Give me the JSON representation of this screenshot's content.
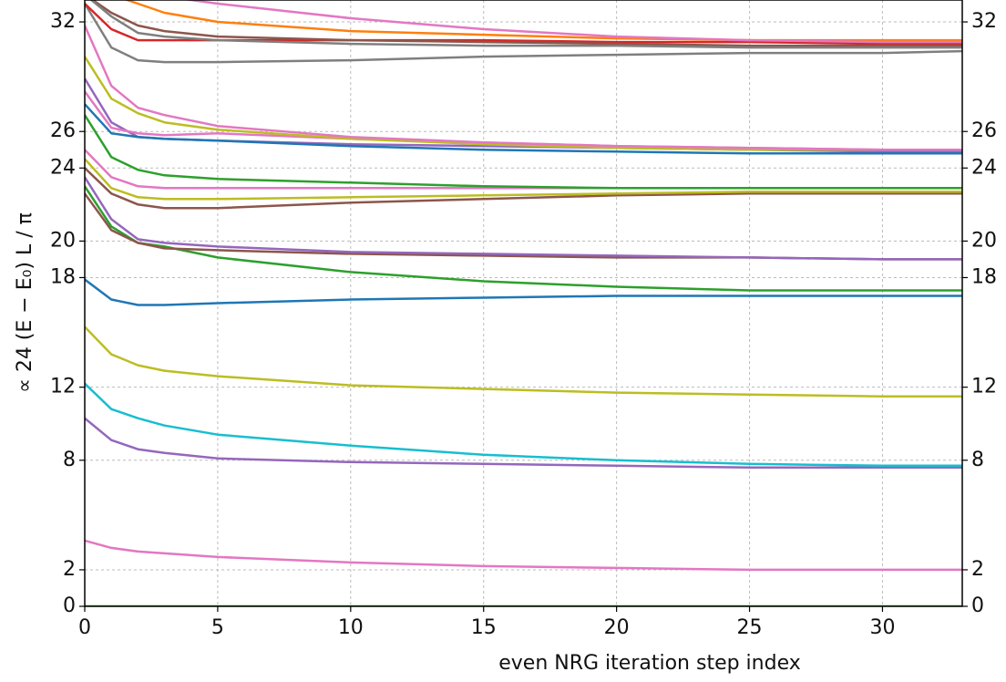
{
  "chart_data": {
    "type": "line",
    "xlabel": "even NRG iteration step index",
    "ylabel": "∝ 24 (E − E₀) L / π",
    "x": [
      0,
      1,
      2,
      3,
      5,
      10,
      15,
      20,
      25,
      30,
      33
    ],
    "xlim": [
      0,
      33
    ],
    "ylim": [
      0,
      33.2
    ],
    "xticks": [
      0,
      5,
      10,
      15,
      20,
      25,
      30
    ],
    "yticks": [
      0,
      2,
      8,
      12,
      18,
      20,
      24,
      26,
      32
    ],
    "y2lim": [
      0,
      33.2
    ],
    "y2ticks": [
      0,
      2,
      8,
      12,
      18,
      20,
      24,
      26,
      32
    ],
    "grid": true,
    "series": [
      {
        "color": "#2ca02c",
        "values": [
          0,
          0,
          0,
          0,
          0,
          0,
          0,
          0,
          0,
          0,
          0
        ]
      },
      {
        "color": "#e377c2",
        "values": [
          3.6,
          3.2,
          3.0,
          2.9,
          2.7,
          2.4,
          2.2,
          2.1,
          2.0,
          2.0,
          2.0
        ]
      },
      {
        "color": "#9467bd",
        "values": [
          10.3,
          9.1,
          8.6,
          8.4,
          8.1,
          7.9,
          7.8,
          7.7,
          7.6,
          7.6,
          7.6
        ]
      },
      {
        "color": "#17becf",
        "values": [
          12.2,
          10.8,
          10.3,
          9.9,
          9.4,
          8.8,
          8.3,
          8.0,
          7.8,
          7.7,
          7.7
        ]
      },
      {
        "color": "#bcbd22",
        "values": [
          15.3,
          13.8,
          13.2,
          12.9,
          12.6,
          12.1,
          11.9,
          11.7,
          11.6,
          11.5,
          11.5
        ]
      },
      {
        "color": "#1f77b4",
        "values": [
          17.9,
          16.8,
          16.5,
          16.5,
          16.6,
          16.8,
          16.9,
          17.0,
          17.0,
          17.0,
          17.0
        ]
      },
      {
        "color": "#2ca02c",
        "values": [
          23.0,
          20.8,
          19.9,
          19.7,
          19.1,
          18.3,
          17.8,
          17.5,
          17.3,
          17.3,
          17.3
        ]
      },
      {
        "color": "#8c564b",
        "values": [
          22.6,
          20.6,
          19.9,
          19.6,
          19.5,
          19.3,
          19.2,
          19.1,
          19.1,
          19.0,
          19.0
        ]
      },
      {
        "color": "#9467bd",
        "values": [
          23.5,
          21.2,
          20.1,
          19.9,
          19.7,
          19.4,
          19.3,
          19.2,
          19.1,
          19.0,
          19.0
        ]
      },
      {
        "color": "#8c564b",
        "values": [
          24.0,
          22.6,
          22.0,
          21.8,
          21.8,
          22.1,
          22.3,
          22.5,
          22.6,
          22.6,
          22.6
        ]
      },
      {
        "color": "#bcbd22",
        "values": [
          24.5,
          22.9,
          22.4,
          22.3,
          22.3,
          22.4,
          22.5,
          22.6,
          22.7,
          22.7,
          22.7
        ]
      },
      {
        "color": "#e377c2",
        "values": [
          25.0,
          23.5,
          23.0,
          22.9,
          22.9,
          22.9,
          22.9,
          22.9,
          22.9,
          22.9,
          22.9
        ]
      },
      {
        "color": "#2ca02c",
        "values": [
          26.9,
          24.6,
          23.9,
          23.6,
          23.4,
          23.2,
          23.0,
          22.9,
          22.9,
          22.9,
          22.9
        ]
      },
      {
        "color": "#9467bd",
        "values": [
          28.9,
          26.5,
          25.7,
          25.6,
          25.5,
          25.3,
          25.2,
          25.1,
          25.0,
          24.9,
          24.9
        ]
      },
      {
        "color": "#e377c2",
        "values": [
          28.2,
          26.2,
          25.9,
          25.8,
          25.9,
          25.6,
          25.4,
          25.2,
          25.1,
          25.0,
          25.0
        ]
      },
      {
        "color": "#bcbd22",
        "values": [
          30.1,
          27.8,
          27.0,
          26.5,
          26.1,
          25.6,
          25.3,
          25.1,
          25.0,
          25.0,
          25.0
        ]
      },
      {
        "color": "#e377c2",
        "values": [
          31.8,
          28.5,
          27.3,
          26.9,
          26.3,
          25.7,
          25.4,
          25.2,
          25.1,
          25.0,
          25.0
        ]
      },
      {
        "color": "#1f77b4",
        "values": [
          27.5,
          25.9,
          25.7,
          25.6,
          25.5,
          25.2,
          25.0,
          24.9,
          24.8,
          24.8,
          24.8
        ]
      },
      {
        "color": "#7f7f7f",
        "values": [
          33,
          30.6,
          29.9,
          29.8,
          29.8,
          29.9,
          30.1,
          30.2,
          30.3,
          30.3,
          30.4
        ]
      },
      {
        "color": "#d62728",
        "values": [
          33,
          31.6,
          31,
          31,
          31,
          31,
          31,
          30.9,
          30.9,
          30.8,
          30.8
        ]
      },
      {
        "color": "#ff7f0e",
        "values": [
          33.5,
          33.5,
          33,
          32.5,
          32,
          31.5,
          31.3,
          31.1,
          31.0,
          31.0,
          31.0
        ]
      },
      {
        "color": "#8c564b",
        "values": [
          33.5,
          32.5,
          31.8,
          31.5,
          31.2,
          31,
          30.9,
          30.8,
          30.7,
          30.7,
          30.7
        ]
      },
      {
        "color": "#e377c2",
        "values": [
          33.5,
          33.5,
          33.5,
          33.4,
          33,
          32.2,
          31.6,
          31.2,
          31.0,
          30.9,
          30.9
        ]
      },
      {
        "color": "#7f7f7f",
        "values": [
          33.5,
          32.3,
          31.4,
          31.2,
          31.0,
          30.8,
          30.7,
          30.7,
          30.6,
          30.6,
          30.6
        ]
      }
    ]
  }
}
